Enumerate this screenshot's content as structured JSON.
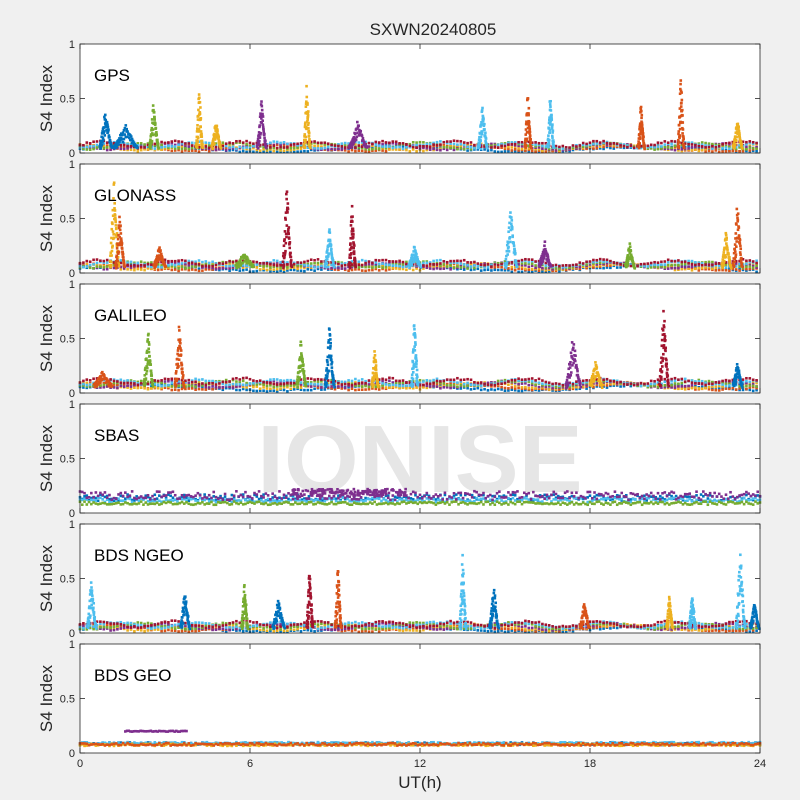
{
  "figure": {
    "title": "SXWN20240805",
    "xlabel": "UT(h)",
    "ylabel": "S4 Index",
    "watermark": "IONISE",
    "background": "#f0f0f0"
  },
  "chart_data": [
    {
      "type": "scatter",
      "panel_label": "GPS",
      "xlim": [
        0,
        24
      ],
      "ylim": [
        0,
        1
      ],
      "xticks": [
        0,
        6,
        12,
        18,
        24
      ],
      "yticks": [
        0,
        0.5,
        1
      ],
      "xtick_labels_shown": false,
      "colors": [
        "#0072BD",
        "#D95319",
        "#EDB120",
        "#7E2F8E",
        "#77AC30",
        "#4DBEEE",
        "#A2142F"
      ],
      "baseline": 0.06,
      "spikes": [
        {
          "x": 0.9,
          "peak": 0.42,
          "width": 0.4,
          "color": "#0072BD"
        },
        {
          "x": 1.6,
          "peak": 0.28,
          "width": 0.8,
          "color": "#0072BD"
        },
        {
          "x": 2.6,
          "peak": 0.5,
          "width": 0.3,
          "color": "#77AC30"
        },
        {
          "x": 4.2,
          "peak": 0.62,
          "width": 0.2,
          "color": "#EDB120"
        },
        {
          "x": 4.8,
          "peak": 0.32,
          "width": 0.3,
          "color": "#EDB120"
        },
        {
          "x": 6.4,
          "peak": 0.5,
          "width": 0.3,
          "color": "#7E2F8E"
        },
        {
          "x": 8.0,
          "peak": 0.65,
          "width": 0.2,
          "color": "#EDB120"
        },
        {
          "x": 9.8,
          "peak": 0.3,
          "width": 0.6,
          "color": "#7E2F8E"
        },
        {
          "x": 14.2,
          "peak": 0.45,
          "width": 0.3,
          "color": "#4DBEEE"
        },
        {
          "x": 15.8,
          "peak": 0.6,
          "width": 0.2,
          "color": "#D95319"
        },
        {
          "x": 16.6,
          "peak": 0.6,
          "width": 0.2,
          "color": "#4DBEEE"
        },
        {
          "x": 19.8,
          "peak": 0.5,
          "width": 0.2,
          "color": "#D95319"
        },
        {
          "x": 21.2,
          "peak": 0.7,
          "width": 0.2,
          "color": "#D95319"
        },
        {
          "x": 23.2,
          "peak": 0.32,
          "width": 0.3,
          "color": "#EDB120"
        }
      ]
    },
    {
      "type": "scatter",
      "panel_label": "GLONASS",
      "xlim": [
        0,
        24
      ],
      "ylim": [
        0,
        1
      ],
      "xticks": [
        0,
        6,
        12,
        18,
        24
      ],
      "yticks": [
        0,
        0.5,
        1
      ],
      "xtick_labels_shown": false,
      "colors": [
        "#0072BD",
        "#D95319",
        "#EDB120",
        "#7E2F8E",
        "#77AC30",
        "#4DBEEE",
        "#A2142F"
      ],
      "baseline": 0.07,
      "spikes": [
        {
          "x": 1.2,
          "peak": 0.9,
          "width": 0.3,
          "color": "#EDB120"
        },
        {
          "x": 1.4,
          "peak": 0.55,
          "width": 0.3,
          "color": "#D95319"
        },
        {
          "x": 2.8,
          "peak": 0.25,
          "width": 0.4,
          "color": "#D95319"
        },
        {
          "x": 5.8,
          "peak": 0.2,
          "width": 0.6,
          "color": "#77AC30"
        },
        {
          "x": 7.3,
          "peak": 0.85,
          "width": 0.3,
          "color": "#A2142F"
        },
        {
          "x": 8.8,
          "peak": 0.45,
          "width": 0.3,
          "color": "#4DBEEE"
        },
        {
          "x": 9.6,
          "peak": 0.72,
          "width": 0.2,
          "color": "#A2142F"
        },
        {
          "x": 11.8,
          "peak": 0.25,
          "width": 0.4,
          "color": "#4DBEEE"
        },
        {
          "x": 15.2,
          "peak": 0.65,
          "width": 0.4,
          "color": "#4DBEEE"
        },
        {
          "x": 16.4,
          "peak": 0.3,
          "width": 0.4,
          "color": "#7E2F8E"
        },
        {
          "x": 19.4,
          "peak": 0.28,
          "width": 0.3,
          "color": "#77AC30"
        },
        {
          "x": 23.2,
          "peak": 0.7,
          "width": 0.3,
          "color": "#D95319"
        },
        {
          "x": 22.8,
          "peak": 0.38,
          "width": 0.3,
          "color": "#EDB120"
        }
      ]
    },
    {
      "type": "scatter",
      "panel_label": "GALILEO",
      "xlim": [
        0,
        24
      ],
      "ylim": [
        0,
        1
      ],
      "xticks": [
        0,
        6,
        12,
        18,
        24
      ],
      "yticks": [
        0,
        0.5,
        1
      ],
      "xtick_labels_shown": false,
      "colors": [
        "#0072BD",
        "#D95319",
        "#EDB120",
        "#7E2F8E",
        "#77AC30",
        "#4DBEEE",
        "#A2142F"
      ],
      "baseline": 0.08,
      "spikes": [
        {
          "x": 0.8,
          "peak": 0.2,
          "width": 0.6,
          "color": "#D95319"
        },
        {
          "x": 2.4,
          "peak": 0.65,
          "width": 0.3,
          "color": "#77AC30"
        },
        {
          "x": 3.5,
          "peak": 0.65,
          "width": 0.3,
          "color": "#D95319"
        },
        {
          "x": 7.8,
          "peak": 0.5,
          "width": 0.3,
          "color": "#77AC30"
        },
        {
          "x": 8.8,
          "peak": 0.62,
          "width": 0.3,
          "color": "#0072BD"
        },
        {
          "x": 10.4,
          "peak": 0.4,
          "width": 0.2,
          "color": "#EDB120"
        },
        {
          "x": 11.8,
          "peak": 0.75,
          "width": 0.2,
          "color": "#4DBEEE"
        },
        {
          "x": 17.4,
          "peak": 0.55,
          "width": 0.5,
          "color": "#7E2F8E"
        },
        {
          "x": 18.2,
          "peak": 0.3,
          "width": 0.4,
          "color": "#EDB120"
        },
        {
          "x": 20.6,
          "peak": 0.85,
          "width": 0.3,
          "color": "#A2142F"
        },
        {
          "x": 23.2,
          "peak": 0.28,
          "width": 0.3,
          "color": "#0072BD"
        }
      ]
    },
    {
      "type": "scatter",
      "panel_label": "SBAS",
      "xlim": [
        0,
        24
      ],
      "ylim": [
        0,
        1
      ],
      "xticks": [
        0,
        6,
        12,
        18,
        24
      ],
      "yticks": [
        0,
        0.5,
        1
      ],
      "xtick_labels_shown": false,
      "colors": [
        "#0072BD",
        "#4DBEEE",
        "#7E2F8E",
        "#77AC30"
      ],
      "bands": [
        {
          "level": 0.14,
          "spread": 0.03,
          "color": "#0072BD"
        },
        {
          "level": 0.12,
          "spread": 0.02,
          "color": "#4DBEEE"
        },
        {
          "level": 0.09,
          "spread": 0.015,
          "color": "#77AC30"
        },
        {
          "level": 0.16,
          "spread": 0.04,
          "color": "#7E2F8E"
        }
      ],
      "bumps": [
        {
          "x": 9.5,
          "peak": 0.22,
          "width": 2.0,
          "color": "#7E2F8E"
        }
      ]
    },
    {
      "type": "scatter",
      "panel_label": "BDS NGEO",
      "xlim": [
        0,
        24
      ],
      "ylim": [
        0,
        1
      ],
      "xticks": [
        0,
        6,
        12,
        18,
        24
      ],
      "yticks": [
        0,
        0.5,
        1
      ],
      "xtick_labels_shown": false,
      "colors": [
        "#0072BD",
        "#D95319",
        "#EDB120",
        "#7E2F8E",
        "#77AC30",
        "#4DBEEE",
        "#A2142F"
      ],
      "baseline": 0.06,
      "spikes": [
        {
          "x": 0.4,
          "peak": 0.5,
          "width": 0.3,
          "color": "#4DBEEE"
        },
        {
          "x": 3.7,
          "peak": 0.42,
          "width": 0.3,
          "color": "#0072BD"
        },
        {
          "x": 5.8,
          "peak": 0.5,
          "width": 0.2,
          "color": "#77AC30"
        },
        {
          "x": 7.0,
          "peak": 0.32,
          "width": 0.4,
          "color": "#0072BD"
        },
        {
          "x": 8.1,
          "peak": 0.65,
          "width": 0.2,
          "color": "#A2142F"
        },
        {
          "x": 9.1,
          "peak": 0.65,
          "width": 0.2,
          "color": "#D95319"
        },
        {
          "x": 13.5,
          "peak": 0.75,
          "width": 0.2,
          "color": "#4DBEEE"
        },
        {
          "x": 14.6,
          "peak": 0.45,
          "width": 0.3,
          "color": "#0072BD"
        },
        {
          "x": 17.8,
          "peak": 0.3,
          "width": 0.3,
          "color": "#D95319"
        },
        {
          "x": 20.8,
          "peak": 0.35,
          "width": 0.2,
          "color": "#EDB120"
        },
        {
          "x": 21.6,
          "peak": 0.4,
          "width": 0.2,
          "color": "#4DBEEE"
        },
        {
          "x": 23.3,
          "peak": 0.8,
          "width": 0.3,
          "color": "#4DBEEE"
        },
        {
          "x": 23.8,
          "peak": 0.3,
          "width": 0.3,
          "color": "#0072BD"
        }
      ]
    },
    {
      "type": "scatter",
      "panel_label": "BDS GEO",
      "xlim": [
        0,
        24
      ],
      "ylim": [
        0,
        1
      ],
      "xticks": [
        0,
        6,
        12,
        18,
        24
      ],
      "xtick_labels": [
        "0",
        "6",
        "12",
        "18",
        "24"
      ],
      "yticks": [
        0,
        0.5,
        1
      ],
      "xtick_labels_shown": true,
      "colors": [
        "#0072BD",
        "#D95319",
        "#EDB120",
        "#4DBEEE",
        "#7E2F8E"
      ],
      "bands": [
        {
          "level": 0.085,
          "spread": 0.012,
          "color": "#0072BD"
        },
        {
          "level": 0.09,
          "spread": 0.01,
          "color": "#4DBEEE"
        },
        {
          "level": 0.075,
          "spread": 0.01,
          "color": "#EDB120"
        },
        {
          "level": 0.08,
          "spread": 0.012,
          "color": "#D95319"
        }
      ],
      "segments": [
        {
          "x0": 1.6,
          "x1": 3.8,
          "level": 0.2,
          "color": "#7E2F8E"
        }
      ]
    }
  ]
}
